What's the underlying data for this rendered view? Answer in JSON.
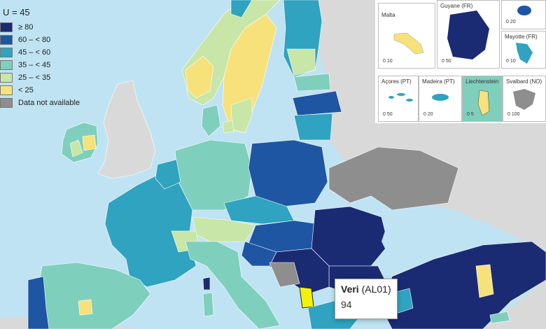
{
  "legend": {
    "title": "U = 45",
    "items": [
      {
        "label": "≥ 80",
        "color": "#1a2b74"
      },
      {
        "label": "60 – < 80",
        "color": "#1f56a3"
      },
      {
        "label": "45 – < 60",
        "color": "#2fa3bf"
      },
      {
        "label": "35 – < 45",
        "color": "#7fcfbd"
      },
      {
        "label": "25 – < 35",
        "color": "#c7e6a7"
      },
      {
        "label": "< 25",
        "color": "#f7e17b"
      },
      {
        "label": "Data not available",
        "color": "#8e8e8e"
      }
    ]
  },
  "insets": {
    "malta": {
      "label": "Malta",
      "scale": "0   10"
    },
    "guyane": {
      "label": "Guyane (FR)",
      "scale": "0   50"
    },
    "reunion": {
      "label": "",
      "scale": "0   20"
    },
    "mayotte": {
      "label": "Mayotte (FR)",
      "scale": "0   10"
    },
    "acores": {
      "label": "Açores (PT)",
      "scale": "0   50"
    },
    "madeira": {
      "label": "Madeira (PT)",
      "scale": "0   20"
    },
    "liechtenstein": {
      "label": "Liechtenstein",
      "scale": "0   5"
    },
    "svalbard": {
      "label": "Svalbard (NO)",
      "scale": "0  100"
    }
  },
  "tooltip": {
    "name": "Veri",
    "code": "(AL01)",
    "value": "94"
  },
  "colors": {
    "sea": "#bfe3f2",
    "non_eu_land": "#d9d9d9",
    "no_data": "#8e8e8e",
    "highlight": "#f2f20a"
  }
}
